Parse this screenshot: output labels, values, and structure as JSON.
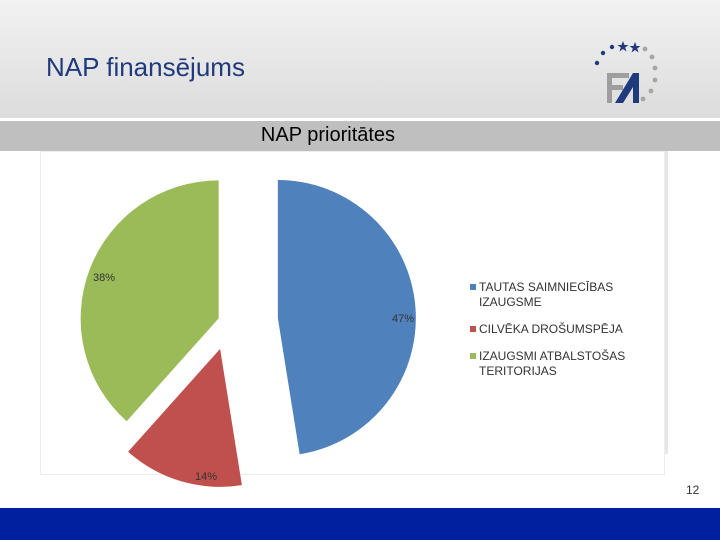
{
  "slide": {
    "title": "NAP finansējums",
    "page_number": "12"
  },
  "chart_data": {
    "type": "pie",
    "title": "NAP prioritātes",
    "categories": [
      "TAUTAS SAIMNIECĪBAS IZAUGSME",
      "CILVĒKA DROŠUMSPĒJA",
      "IZAUGSMI ATBALSTOŠAS TERITORIJAS"
    ],
    "values": [
      47,
      14,
      38
    ],
    "value_labels": [
      "47%",
      "14%",
      "38%"
    ],
    "colors": [
      "#4f81bd",
      "#c0504d",
      "#9bbb59"
    ],
    "exploded": true,
    "legend_position": "right"
  },
  "colors": {
    "title": "#1f3a7d",
    "footer": "#00209f"
  }
}
